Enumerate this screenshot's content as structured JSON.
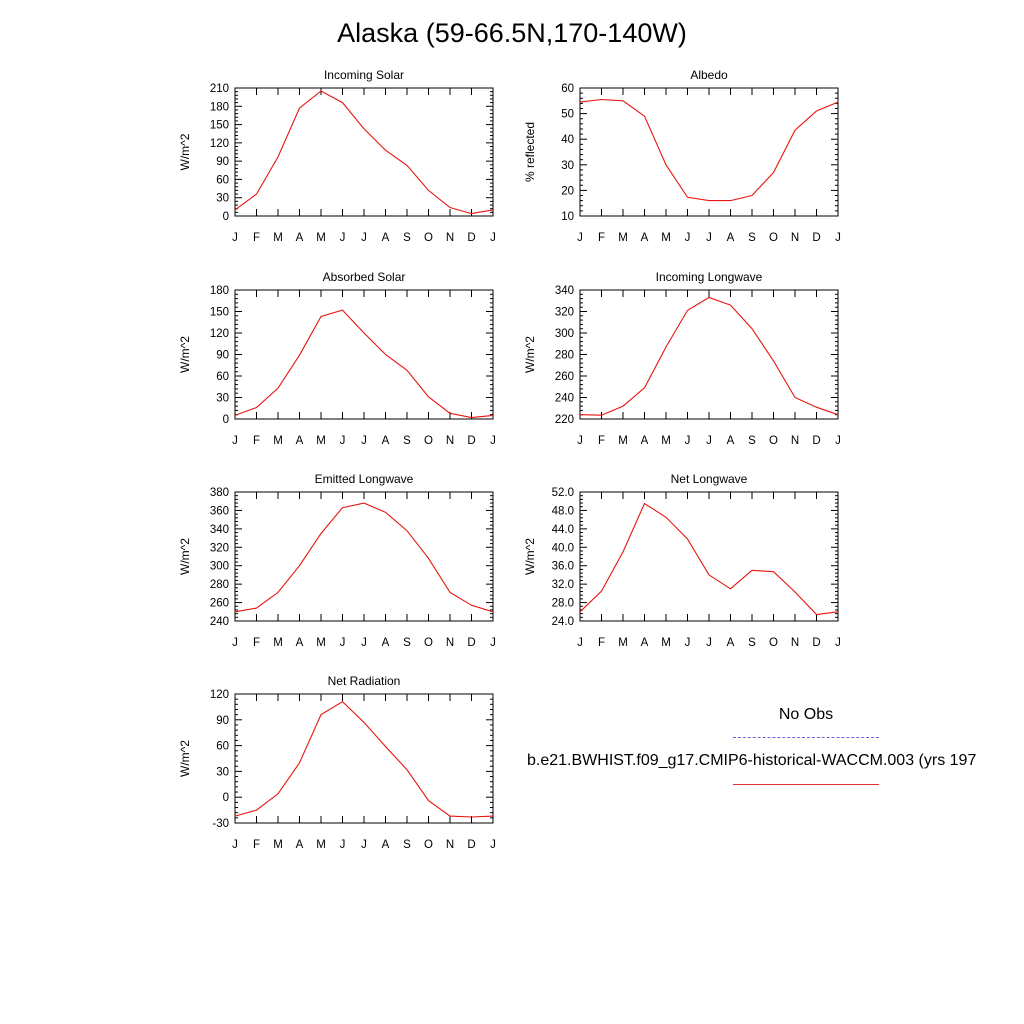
{
  "title": "Alaska (59-66.5N,170-140W)",
  "colors": {
    "model": "#e8140f",
    "obs": "#6666dd"
  },
  "legend": {
    "obs_label": "No Obs",
    "model_label": "b.e21.BWHIST.f09_g17.CMIP6-historical-WACCM.003 (yrs 197"
  },
  "chart_data": [
    {
      "type": "line",
      "title": "Incoming Solar",
      "ylabel": "W/m^2",
      "categories": [
        "J",
        "F",
        "M",
        "A",
        "M",
        "J",
        "J",
        "A",
        "S",
        "O",
        "N",
        "D",
        "J"
      ],
      "ylim": [
        0,
        210
      ],
      "yticks": [
        "0",
        "30",
        "60",
        "90",
        "120",
        "150",
        "180",
        "210"
      ],
      "series": [
        {
          "values": [
            10,
            36,
            97,
            177,
            205,
            186,
            143,
            108,
            83,
            42,
            14,
            4,
            10
          ]
        }
      ]
    },
    {
      "type": "line",
      "title": "Albedo",
      "ylabel": "% reflected",
      "categories": [
        "J",
        "F",
        "M",
        "A",
        "M",
        "J",
        "J",
        "A",
        "S",
        "O",
        "N",
        "D",
        "J"
      ],
      "ylim": [
        10,
        60
      ],
      "yticks": [
        "10",
        "20",
        "30",
        "40",
        "50",
        "60"
      ],
      "series": [
        {
          "values": [
            54.5,
            55.5,
            55,
            49,
            30,
            17.3,
            16,
            16,
            18,
            27,
            43.5,
            51,
            54.5
          ]
        }
      ]
    },
    {
      "type": "line",
      "title": "Absorbed Solar",
      "ylabel": "W/m^2",
      "categories": [
        "J",
        "F",
        "M",
        "A",
        "M",
        "J",
        "J",
        "A",
        "S",
        "O",
        "N",
        "D",
        "J"
      ],
      "ylim": [
        0,
        180
      ],
      "yticks": [
        "0",
        "30",
        "60",
        "90",
        "120",
        "150",
        "180"
      ],
      "series": [
        {
          "values": [
            5,
            16,
            43,
            89,
            143,
            152,
            120,
            90,
            68,
            31,
            8,
            2,
            5
          ]
        }
      ]
    },
    {
      "type": "line",
      "title": "Incoming Longwave",
      "ylabel": "W/m^2",
      "categories": [
        "J",
        "F",
        "M",
        "A",
        "M",
        "J",
        "J",
        "A",
        "S",
        "O",
        "N",
        "D",
        "J"
      ],
      "ylim": [
        220,
        340
      ],
      "yticks": [
        "220",
        "240",
        "260",
        "280",
        "300",
        "320",
        "340"
      ],
      "series": [
        {
          "values": [
            224,
            223.5,
            232,
            249,
            287,
            321,
            333,
            326,
            304,
            274,
            240,
            231,
            224
          ]
        }
      ]
    },
    {
      "type": "line",
      "title": "Emitted Longwave",
      "ylabel": "W/m^2",
      "categories": [
        "J",
        "F",
        "M",
        "A",
        "M",
        "J",
        "J",
        "A",
        "S",
        "O",
        "N",
        "D",
        "J"
      ],
      "ylim": [
        240,
        380
      ],
      "yticks": [
        "240",
        "260",
        "280",
        "300",
        "320",
        "340",
        "360",
        "380"
      ],
      "series": [
        {
          "values": [
            250,
            254,
            271,
            300,
            335,
            363,
            368,
            358,
            338,
            308,
            271,
            257,
            250
          ]
        }
      ]
    },
    {
      "type": "line",
      "title": "Net Longwave",
      "ylabel": "W/m^2",
      "categories": [
        "J",
        "F",
        "M",
        "A",
        "M",
        "J",
        "J",
        "A",
        "S",
        "O",
        "N",
        "D",
        "J"
      ],
      "ylim": [
        24,
        52
      ],
      "yticks": [
        "24.0",
        "28.0",
        "32.0",
        "36.0",
        "40.0",
        "44.0",
        "48.0",
        "52.0"
      ],
      "series": [
        {
          "values": [
            26,
            30.5,
            39,
            49.5,
            46.5,
            41.8,
            34,
            31,
            35,
            34.7,
            30.3,
            25.4,
            26
          ]
        }
      ]
    },
    {
      "type": "line",
      "title": "Net Radiation",
      "ylabel": "W/m^2",
      "categories": [
        "J",
        "F",
        "M",
        "A",
        "M",
        "J",
        "J",
        "A",
        "S",
        "O",
        "N",
        "D",
        "J"
      ],
      "ylim": [
        -30,
        120
      ],
      "yticks": [
        "-30",
        "0",
        "30",
        "60",
        "90",
        "120"
      ],
      "series": [
        {
          "values": [
            -22,
            -15,
            4,
            40,
            96,
            111,
            87,
            59,
            32,
            -4,
            -22,
            -23,
            -22
          ]
        }
      ]
    }
  ]
}
